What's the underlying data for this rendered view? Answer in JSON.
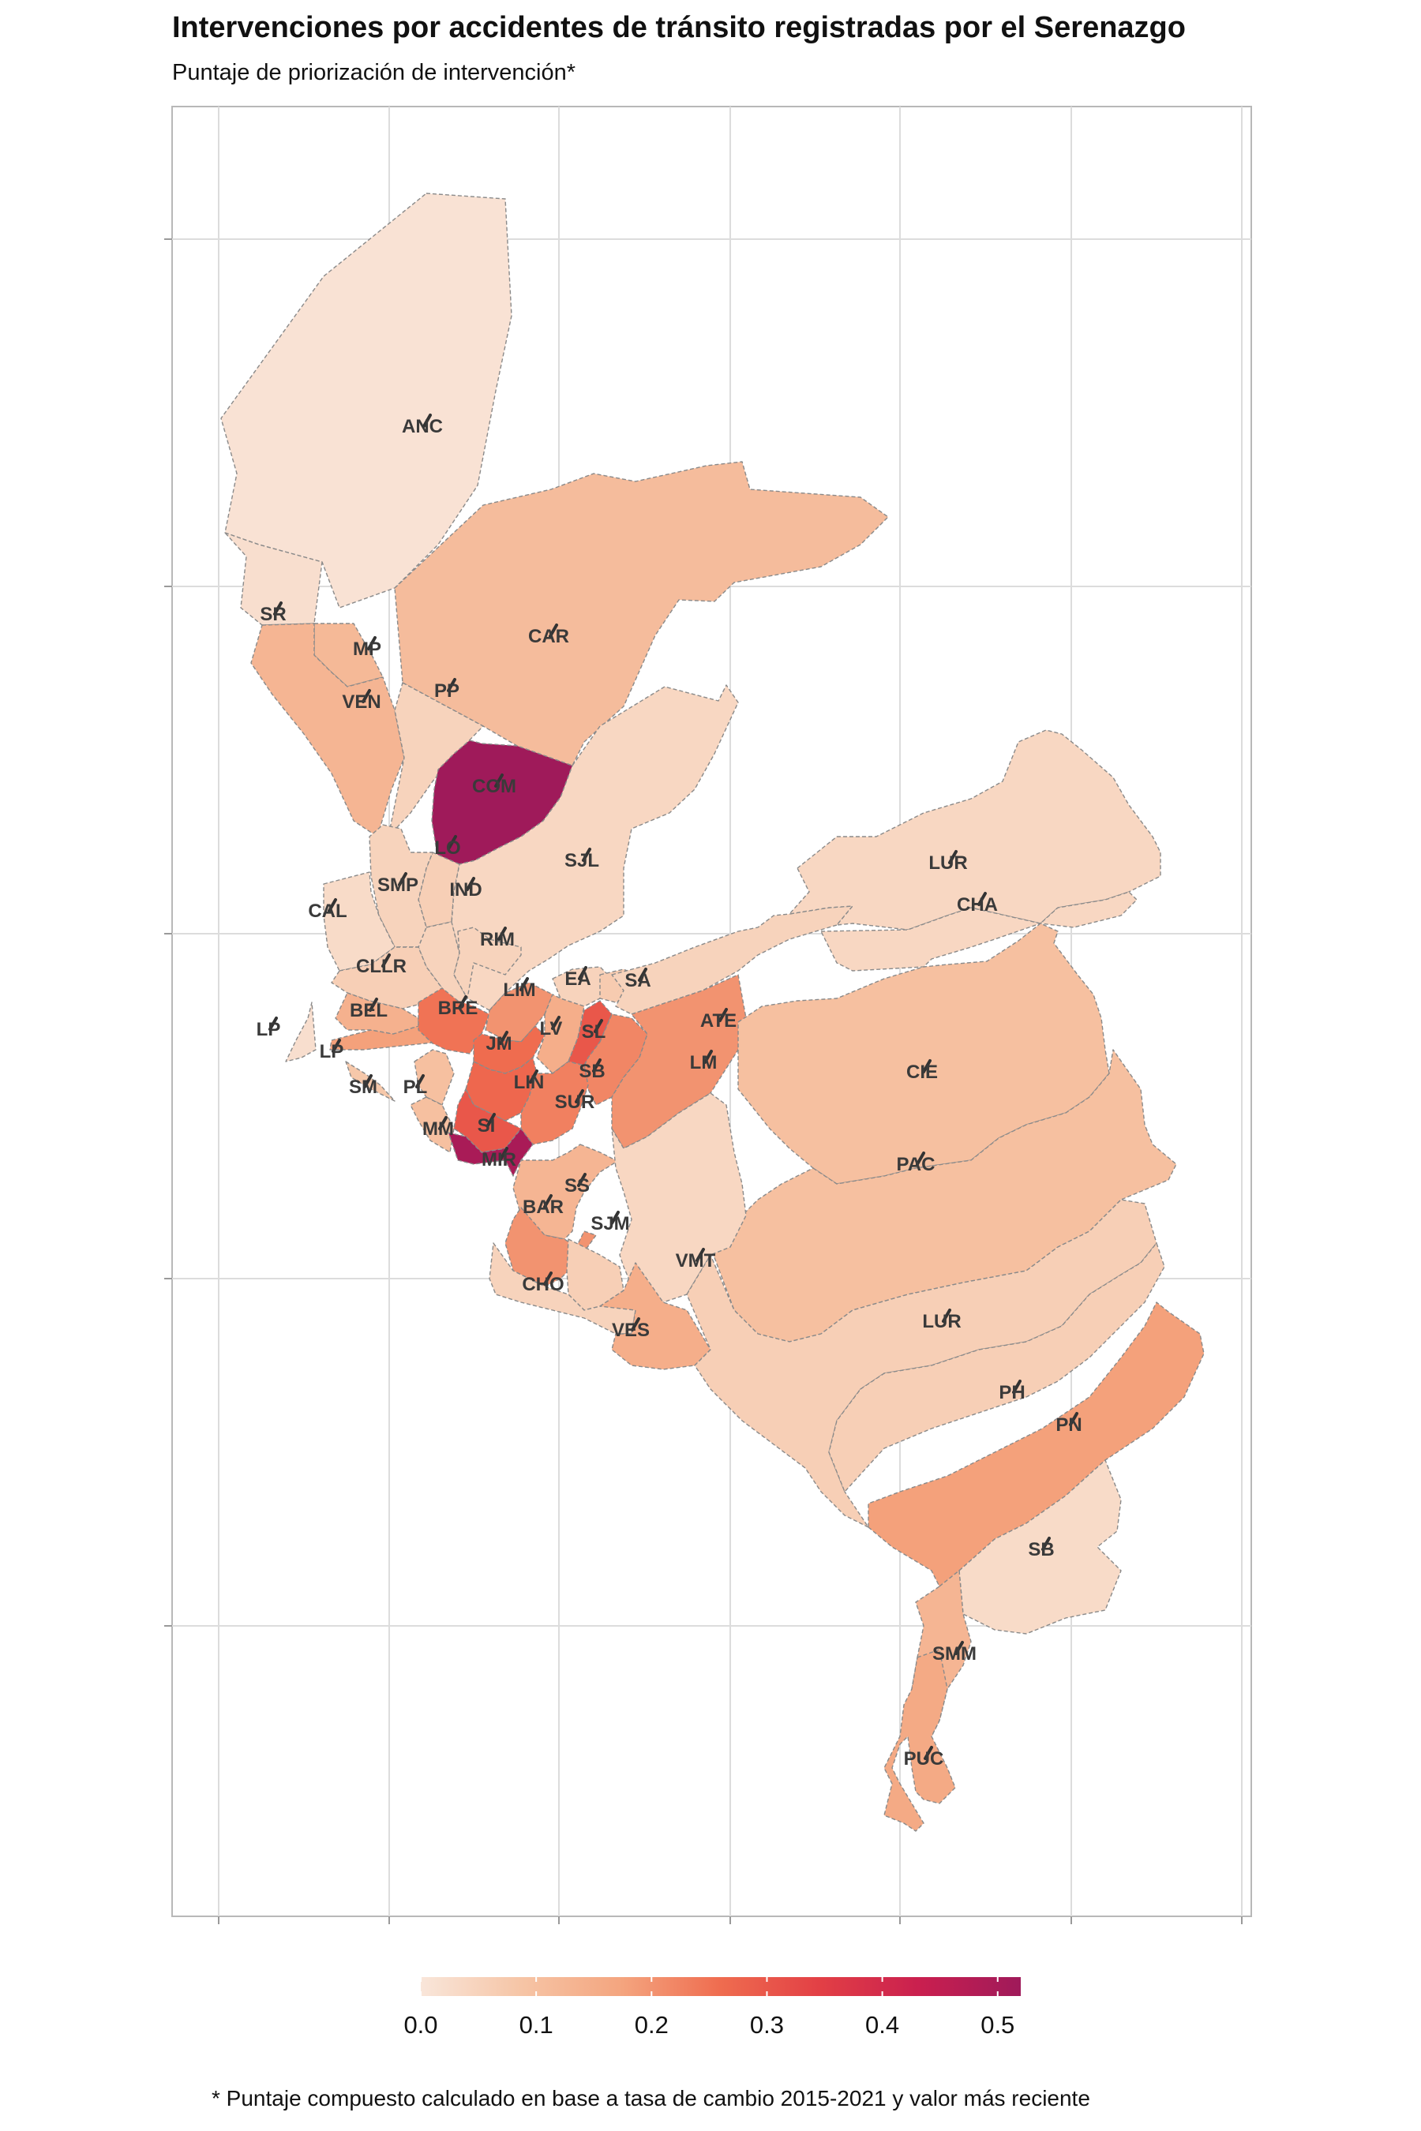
{
  "title": "Intervenciones por accidentes de tránsito registradas por el Serenazgo",
  "subtitle": "Puntaje de priorización de intervención*",
  "caption": "* Puntaje compuesto calculado en base a tasa de cambio 2015-2021 y valor más reciente",
  "legend": {
    "ticks": [
      "0.0",
      "0.1",
      "0.2",
      "0.3",
      "0.4",
      "0.5"
    ],
    "domain": [
      0,
      0.52
    ],
    "palette": [
      "#f9e6da",
      "#f6c5a6",
      "#f4a57f",
      "#ef6c4f",
      "#e23f45",
      "#c91f4f",
      "#9f1a5a"
    ]
  },
  "chart_data": {
    "type": "choropleth",
    "title": "Intervenciones por accidentes de tránsito registradas por el Serenazgo",
    "subtitle": "Puntaje de priorización de intervención*",
    "districts": [
      {
        "code": "ANC",
        "score": 0.01
      },
      {
        "code": "SR",
        "score": 0.02
      },
      {
        "code": "CAR",
        "score": 0.11
      },
      {
        "code": "MP",
        "score": 0.12
      },
      {
        "code": "VEN",
        "score": 0.13
      },
      {
        "code": "PP",
        "score": 0.05
      },
      {
        "code": "COM",
        "score": 0.52
      },
      {
        "code": "LO",
        "score": 0.06
      },
      {
        "code": "SJL",
        "score": 0.04
      },
      {
        "code": "IND",
        "score": 0.05
      },
      {
        "code": "SMP",
        "score": 0.05
      },
      {
        "code": "CAL",
        "score": 0.03
      },
      {
        "code": "RIM",
        "score": 0.05
      },
      {
        "code": "CLLR",
        "score": 0.06
      },
      {
        "code": "LP",
        "score": 0.02
      },
      {
        "code": "LP",
        "score": 0.18
      },
      {
        "code": "BEL",
        "score": 0.14
      },
      {
        "code": "BRE",
        "score": 0.25
      },
      {
        "code": "LIM",
        "score": 0.2
      },
      {
        "code": "EA",
        "score": 0.05
      },
      {
        "code": "SA",
        "score": 0.07
      },
      {
        "code": "ATE",
        "score": 0.05
      },
      {
        "code": "LUR",
        "score": 0.04
      },
      {
        "code": "CHA",
        "score": 0.04
      },
      {
        "code": "JM",
        "score": 0.26
      },
      {
        "code": "LV",
        "score": 0.15
      },
      {
        "code": "SL",
        "score": 0.3
      },
      {
        "code": "SM",
        "score": 0.08
      },
      {
        "code": "PL",
        "score": 0.1
      },
      {
        "code": "LIN",
        "score": 0.27
      },
      {
        "code": "SB",
        "score": 0.22
      },
      {
        "code": "LM",
        "score": 0.2
      },
      {
        "code": "CIE",
        "score": 0.1
      },
      {
        "code": "MM",
        "score": 0.1
      },
      {
        "code": "SI",
        "score": 0.3
      },
      {
        "code": "SUR",
        "score": 0.23
      },
      {
        "code": "MIR",
        "score": 0.5
      },
      {
        "code": "SS",
        "score": 0.13
      },
      {
        "code": "BAR",
        "score": 0.2
      },
      {
        "code": "PAC",
        "score": 0.1
      },
      {
        "code": "SJM",
        "score": 0.06
      },
      {
        "code": "VMT",
        "score": 0.04
      },
      {
        "code": "CHO",
        "score": 0.05
      },
      {
        "code": "VES",
        "score": 0.15
      },
      {
        "code": "LUR",
        "score": 0.06
      },
      {
        "code": "PH",
        "score": 0.06
      },
      {
        "code": "PN",
        "score": 0.18
      },
      {
        "code": "SB",
        "score": 0.03
      },
      {
        "code": "SMM",
        "score": 0.13
      },
      {
        "code": "PUC",
        "score": 0.16
      }
    ]
  }
}
